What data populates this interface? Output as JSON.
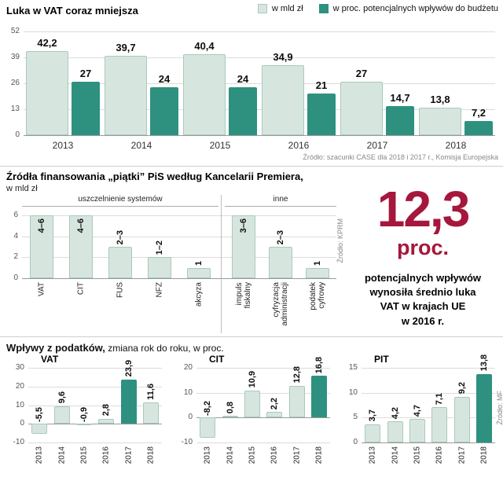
{
  "colors": {
    "bar_light_fill": "#d6e6de",
    "bar_light_border": "#a9c9bb",
    "bar_dark": "#2e9180",
    "accent_red": "#a5173c",
    "grid": "#dcdcdc",
    "muted": "#888888"
  },
  "top_section": {
    "title": "Luka w VAT coraz mniejsza",
    "legend": [
      {
        "label": "w mld zł",
        "swatch": "light"
      },
      {
        "label": "w proc. potencjalnych wpływów do budżetu",
        "swatch": "dark"
      }
    ],
    "source": "Źródło: szacunki CASE dla 2018 i 2017 r., Komisja Europejska"
  },
  "middle_section": {
    "title": "Źródła finansowania „piątki” PiS według Kancelarii Premiera,",
    "subtitle": "w mld zł",
    "source": "Źródło: KPRM",
    "highlight": {
      "big_number": "12,3",
      "big_unit": "proc.",
      "caption": "potencjalnych wpływów\nwynosiła średnio luka\nVAT w krajach UE\nw 2016 r."
    }
  },
  "bottom_section": {
    "title_bold": "Wpływy z podatków,",
    "title_rest": " zmiana rok do roku, w proc.",
    "source": "Źródło: MF"
  },
  "chart_data": [
    {
      "id": "vat_gap",
      "type": "bar",
      "title": "Luka w VAT coraz mniejsza",
      "categories": [
        "2013",
        "2014",
        "2015",
        "2016",
        "2017",
        "2018"
      ],
      "series": [
        {
          "name": "w mld zł",
          "style": "light",
          "values": [
            42.2,
            39.7,
            40.4,
            34.9,
            27,
            13.8
          ],
          "labels": [
            "42,2",
            "39,7",
            "40,4",
            "34,9",
            "27",
            "13,8"
          ]
        },
        {
          "name": "w proc. potencjalnych wpływów do budżetu",
          "style": "dark",
          "values": [
            27,
            24,
            24,
            21,
            14.7,
            7.2
          ],
          "labels": [
            "27",
            "24",
            "24",
            "21",
            "14,7",
            "7,2"
          ]
        }
      ],
      "ylim": [
        0,
        52
      ],
      "yticks": [
        52,
        39,
        26,
        13,
        0
      ],
      "legend_position": "top",
      "grid": true
    },
    {
      "id": "funding_sources",
      "type": "bar",
      "title": "Źródła finansowania „piątki” PiS według Kancelarii Premiera",
      "unit": "w mld zł",
      "groups": [
        {
          "label": "uszczelnienie systemów",
          "bars": [
            {
              "category": "VAT",
              "label": "4–6",
              "value": 6
            },
            {
              "category": "CIT",
              "label": "4–6",
              "value": 6
            },
            {
              "category": "FUS",
              "label": "2–3",
              "value": 3
            },
            {
              "category": "NFZ",
              "label": "1–2",
              "value": 2
            },
            {
              "category": "akcyza",
              "label": "1",
              "value": 1
            }
          ]
        },
        {
          "label": "inne",
          "bars": [
            {
              "category": "impuls\nfiskalny",
              "label": "3–6",
              "value": 6
            },
            {
              "category": "cyfryzacja\nadministracji",
              "label": "2–3",
              "value": 3
            },
            {
              "category": "podatek\ncyfrowy",
              "label": "1",
              "value": 1
            }
          ]
        }
      ],
      "ylim": [
        0,
        6.6
      ],
      "yticks": [
        6,
        4,
        2,
        0
      ],
      "grid": true
    },
    {
      "id": "tax_revenue_vat",
      "type": "bar",
      "title": "VAT",
      "categories": [
        "2013",
        "2014",
        "2015",
        "2016",
        "2017",
        "2018"
      ],
      "values": [
        -5.5,
        9.6,
        -0.9,
        2.8,
        23.9,
        11.6
      ],
      "labels": [
        "-5,5",
        "9,6",
        "-0,9",
        "2,8",
        "23,9",
        "11,6"
      ],
      "highlight_index": 4,
      "ylim": [
        -10,
        30
      ],
      "yticks": [
        30,
        20,
        10,
        0,
        -10
      ],
      "grid": true
    },
    {
      "id": "tax_revenue_cit",
      "type": "bar",
      "title": "CIT",
      "categories": [
        "2013",
        "2014",
        "2015",
        "2016",
        "2017",
        "2018"
      ],
      "values": [
        -8.2,
        0.8,
        10.9,
        2.2,
        12.8,
        16.8
      ],
      "labels": [
        "-8,2",
        "0,8",
        "10,9",
        "2,2",
        "12,8",
        "16,8"
      ],
      "highlight_index": 5,
      "ylim": [
        -10,
        20
      ],
      "yticks": [
        20,
        10,
        0,
        -10
      ],
      "grid": true
    },
    {
      "id": "tax_revenue_pit",
      "type": "bar",
      "title": "PIT",
      "categories": [
        "2013",
        "2014",
        "2015",
        "2016",
        "2017",
        "2018"
      ],
      "values": [
        3.7,
        4.2,
        4.7,
        7.1,
        9.2,
        13.8
      ],
      "labels": [
        "3,7",
        "4,2",
        "4,7",
        "7,1",
        "9,2",
        "13,8"
      ],
      "highlight_index": 5,
      "ylim": [
        0,
        15
      ],
      "yticks": [
        15,
        10,
        5,
        0
      ],
      "grid": true
    }
  ]
}
